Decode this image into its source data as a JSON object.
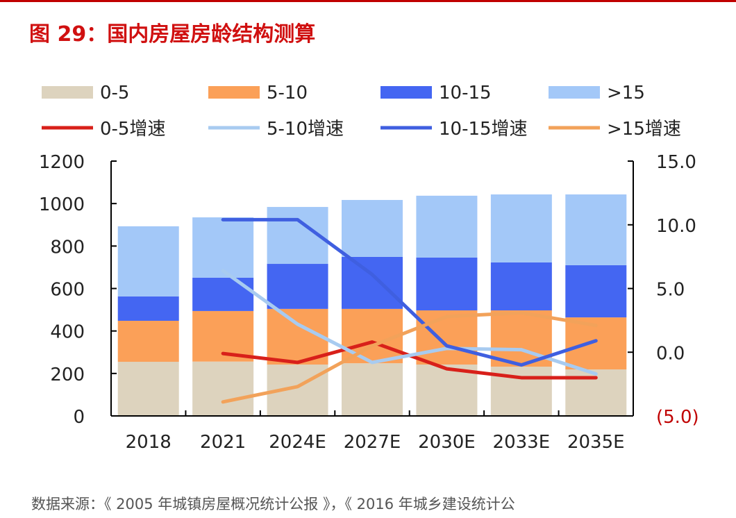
{
  "title": "图 29：国内房屋房龄结构测算",
  "source": "数据来源：《 2005 年城镇房屋概况统计公报 》，《 2016 年城乡建设统计公",
  "chart_data": {
    "type": "bar",
    "stacked": true,
    "categories": [
      "2018",
      "2021",
      "2024E",
      "2027E",
      "2030E",
      "2033E",
      "2035E"
    ],
    "ylim": [
      0,
      1200
    ],
    "yticks": [
      "0",
      "200",
      "400",
      "600",
      "800",
      "1000",
      "1200"
    ],
    "y2lim": [
      -5,
      15
    ],
    "y2ticks": [
      "(5.0)",
      "0.0",
      "5.0",
      "10.0",
      "15.0"
    ],
    "grid": false,
    "legend_position": "top",
    "series": [
      {
        "name": "0-5",
        "kind": "bar",
        "color": "#ddd3be",
        "values": [
          255,
          256,
          242,
          248,
          242,
          232,
          219
        ]
      },
      {
        "name": "5-10",
        "kind": "bar",
        "color": "#fba058",
        "values": [
          193,
          238,
          262,
          256,
          255,
          265,
          245
        ]
      },
      {
        "name": "10-15",
        "kind": "bar",
        "color": "#4466f2",
        "values": [
          115,
          157,
          212,
          245,
          249,
          226,
          246
        ]
      },
      {
        "name": ">15",
        "kind": "bar",
        "color": "#a3c8f8",
        "values": [
          330,
          284,
          268,
          268,
          291,
          320,
          333
        ]
      },
      {
        "name": "0-5增速",
        "kind": "line",
        "axis": "right",
        "color": "#d8201a",
        "values": [
          null,
          -0.1,
          -0.8,
          0.8,
          -1.3,
          -2.0,
          -2.0
        ]
      },
      {
        "name": "5-10增速",
        "kind": "line",
        "axis": "right",
        "color": "#a8cbf0",
        "values": [
          null,
          6.4,
          2.2,
          -0.8,
          0.3,
          0.2,
          -1.7
        ]
      },
      {
        "name": "10-15增速",
        "kind": "line",
        "axis": "right",
        "color": "#3f5fe0",
        "values": [
          null,
          10.4,
          10.4,
          6.1,
          0.5,
          -1.0,
          0.9
        ]
      },
      {
        "name": ">15增速",
        "kind": "line",
        "axis": "right",
        "color": "#f2a25a",
        "values": [
          null,
          -3.9,
          -2.7,
          0.5,
          2.8,
          3.1,
          2.1
        ]
      }
    ]
  }
}
